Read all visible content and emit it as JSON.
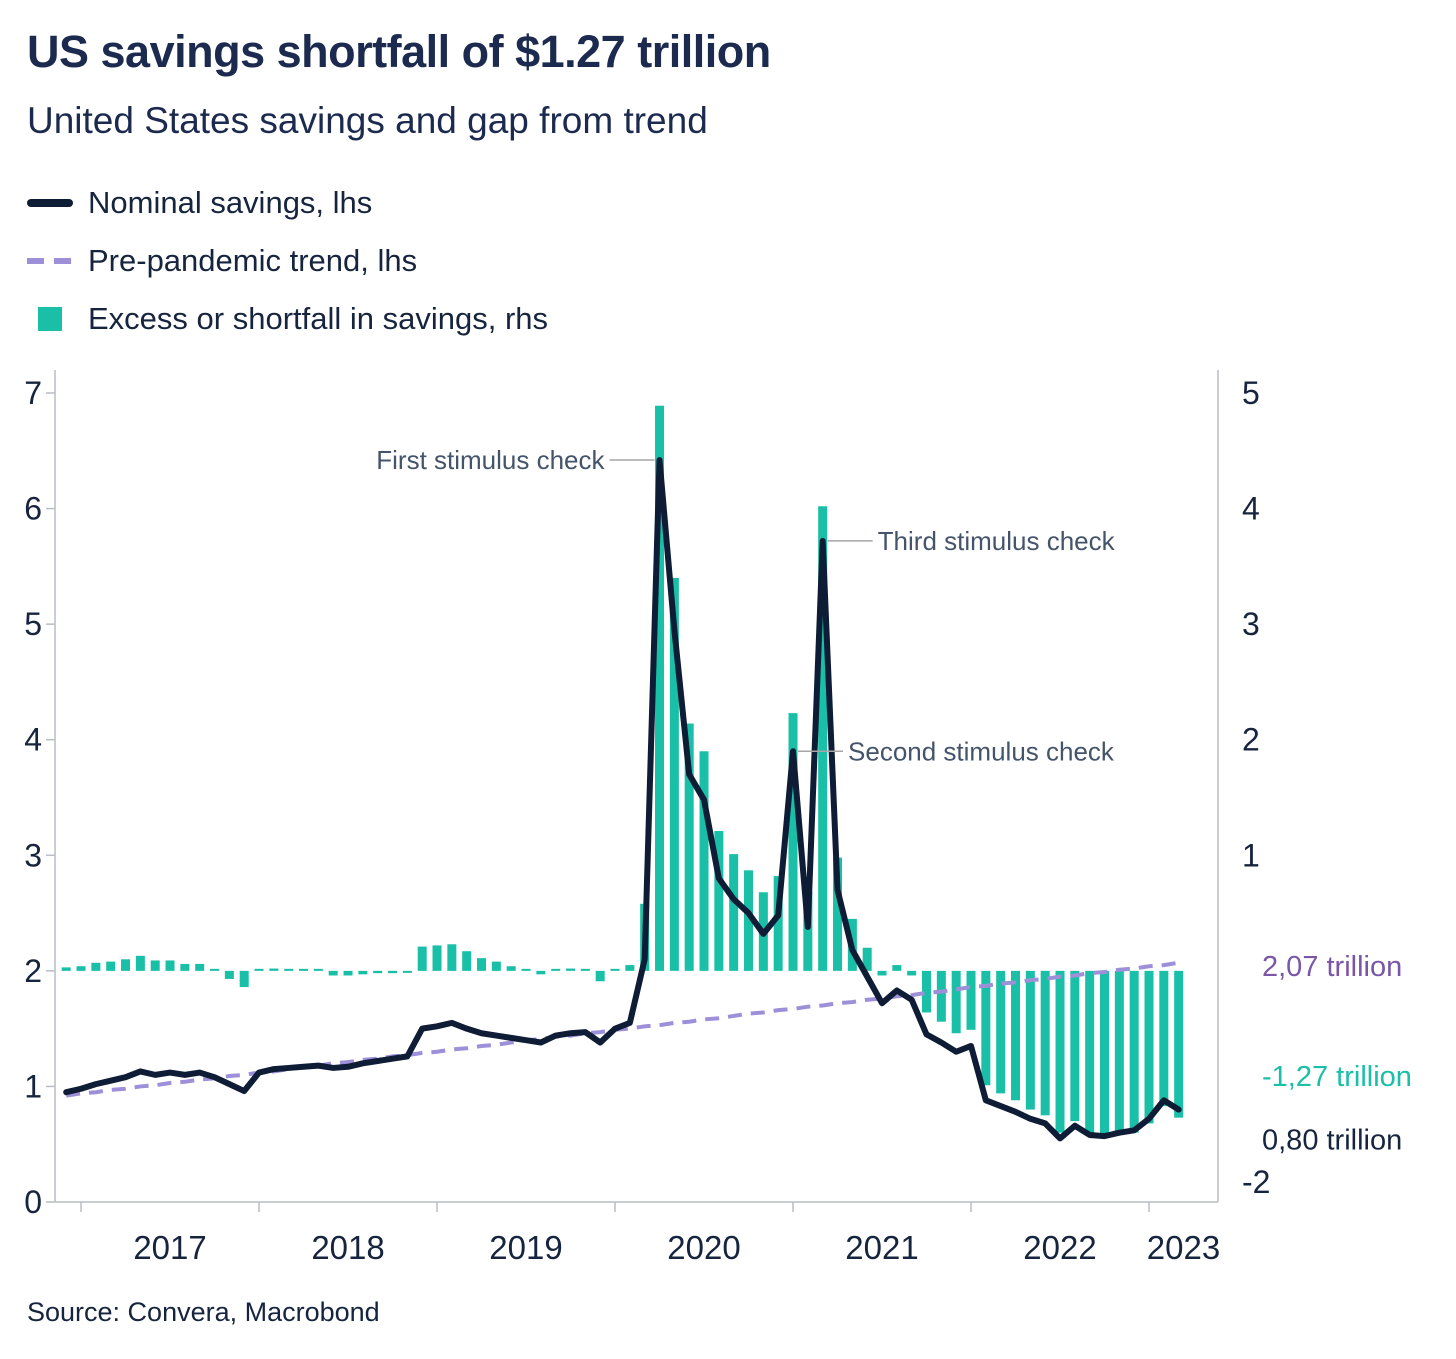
{
  "header": {
    "title": "US savings shortfall of $1.27 trillion",
    "subtitle": "United States savings and gap from trend"
  },
  "legend": [
    {
      "label": "Nominal savings, lhs",
      "swatch": "solid-line",
      "color": "#0e1c36"
    },
    {
      "label": "Pre-pandemic trend, lhs",
      "swatch": "dashed-line",
      "color": "#9e8fd9"
    },
    {
      "label": "Excess or shortfall in savings, rhs",
      "swatch": "square",
      "color": "#19bfa6"
    }
  ],
  "footer": {
    "source": "Source: Convera, Macrobond"
  },
  "colors": {
    "title": "#1b2a4e",
    "text": "#16243e",
    "line": "#0e1c36",
    "trend": "#9e8fd9",
    "trend_label": "#7a56a8",
    "excess": "#19bfa6",
    "annotation_text": "#44546a",
    "connector": "#a6a6a6",
    "axis_line": "#b9bdc4"
  },
  "left_axis": {
    "ticks": [
      7,
      6,
      5,
      4,
      3,
      2,
      1,
      0
    ],
    "range": [
      0,
      7
    ]
  },
  "right_axis": {
    "ticks": [
      5,
      4,
      3,
      2,
      1
    ],
    "bottom_tick": "-2",
    "range": [
      -2,
      5
    ]
  },
  "x_axis": {
    "year_labels": [
      "2017",
      "2018",
      "2019",
      "2020",
      "2021",
      "2022",
      "2023"
    ]
  },
  "right_value_labels": [
    {
      "text": "2,07 trillion",
      "color": "#7a56a8",
      "rhs_position": 0.05
    },
    {
      "text": "-1,27 trillion",
      "color": "#19bfa6",
      "rhs_position": -0.9
    },
    {
      "text": "0,80 trillion",
      "color": "#16243e",
      "rhs_position": -1.45
    }
  ],
  "annotations": [
    {
      "text": "First stimulus check",
      "month": "2020-04",
      "value_lhs": 6.42,
      "side": "left"
    },
    {
      "text": "Third stimulus check",
      "month": "2021-03",
      "value_lhs": 5.72,
      "side": "right"
    },
    {
      "text": "Second stimulus check",
      "month": "2021-01",
      "value_lhs": 3.9,
      "side": "right"
    }
  ],
  "chart_data": {
    "type": "combo",
    "title": "US savings shortfall of $1.27 trillion",
    "subtitle": "United States savings and gap from trend",
    "ylim_lhs": [
      0,
      7
    ],
    "ylim_rhs": [
      -2,
      5
    ],
    "months": [
      "2016-12",
      "2017-01",
      "2017-02",
      "2017-03",
      "2017-04",
      "2017-05",
      "2017-06",
      "2017-07",
      "2017-08",
      "2017-09",
      "2017-10",
      "2017-11",
      "2017-12",
      "2018-01",
      "2018-02",
      "2018-03",
      "2018-04",
      "2018-05",
      "2018-06",
      "2018-07",
      "2018-08",
      "2018-09",
      "2018-10",
      "2018-11",
      "2018-12",
      "2019-01",
      "2019-02",
      "2019-03",
      "2019-04",
      "2019-05",
      "2019-06",
      "2019-07",
      "2019-08",
      "2019-09",
      "2019-10",
      "2019-11",
      "2019-12",
      "2020-01",
      "2020-02",
      "2020-03",
      "2020-04",
      "2020-05",
      "2020-06",
      "2020-07",
      "2020-08",
      "2020-09",
      "2020-10",
      "2020-11",
      "2020-12",
      "2021-01",
      "2021-02",
      "2021-03",
      "2021-04",
      "2021-05",
      "2021-06",
      "2021-07",
      "2021-08",
      "2021-09",
      "2021-10",
      "2021-11",
      "2021-12",
      "2022-01",
      "2022-02",
      "2022-03",
      "2022-04",
      "2022-05",
      "2022-06",
      "2022-07",
      "2022-08",
      "2022-09",
      "2022-10",
      "2022-11",
      "2022-12",
      "2023-01",
      "2023-02",
      "2023-03"
    ],
    "series": [
      {
        "name": "Nominal savings, lhs",
        "type": "line",
        "axis": "lhs",
        "color": "#0e1c36",
        "values": [
          0.95,
          0.98,
          1.02,
          1.05,
          1.08,
          1.13,
          1.1,
          1.12,
          1.1,
          1.12,
          1.08,
          1.02,
          0.96,
          1.12,
          1.15,
          1.16,
          1.17,
          1.18,
          1.16,
          1.17,
          1.2,
          1.22,
          1.24,
          1.26,
          1.5,
          1.52,
          1.55,
          1.5,
          1.46,
          1.44,
          1.42,
          1.4,
          1.38,
          1.44,
          1.46,
          1.47,
          1.38,
          1.5,
          1.55,
          2.1,
          6.42,
          4.95,
          3.7,
          3.48,
          2.8,
          2.62,
          2.5,
          2.32,
          2.48,
          3.9,
          2.38,
          5.72,
          2.7,
          2.18,
          1.95,
          1.72,
          1.83,
          1.75,
          1.45,
          1.38,
          1.3,
          1.35,
          0.88,
          0.83,
          0.78,
          0.72,
          0.68,
          0.55,
          0.66,
          0.58,
          0.57,
          0.6,
          0.62,
          0.72,
          0.88,
          0.8
        ]
      },
      {
        "name": "Pre-pandemic trend, lhs",
        "type": "line-dashed",
        "axis": "lhs",
        "color": "#9e8fd9",
        "values": [
          0.92,
          0.94,
          0.95,
          0.97,
          0.98,
          1.0,
          1.01,
          1.03,
          1.04,
          1.06,
          1.07,
          1.09,
          1.1,
          1.12,
          1.13,
          1.15,
          1.17,
          1.18,
          1.2,
          1.21,
          1.23,
          1.24,
          1.26,
          1.27,
          1.29,
          1.3,
          1.32,
          1.33,
          1.35,
          1.36,
          1.38,
          1.4,
          1.41,
          1.43,
          1.44,
          1.46,
          1.47,
          1.49,
          1.5,
          1.52,
          1.53,
          1.55,
          1.56,
          1.58,
          1.59,
          1.61,
          1.63,
          1.64,
          1.66,
          1.67,
          1.69,
          1.7,
          1.72,
          1.73,
          1.75,
          1.76,
          1.78,
          1.79,
          1.81,
          1.82,
          1.84,
          1.86,
          1.87,
          1.89,
          1.9,
          1.92,
          1.93,
          1.95,
          1.96,
          1.98,
          1.99,
          2.01,
          2.02,
          2.04,
          2.05,
          2.07
        ]
      },
      {
        "name": "Excess or shortfall in savings, rhs",
        "type": "bar",
        "axis": "rhs",
        "color": "#19bfa6",
        "values": [
          0.03,
          0.04,
          0.07,
          0.08,
          0.1,
          0.13,
          0.09,
          0.09,
          0.06,
          0.06,
          0.01,
          -0.07,
          -0.14,
          0.0,
          0.02,
          0.01,
          0.0,
          0.0,
          -0.04,
          -0.04,
          -0.03,
          -0.02,
          -0.02,
          -0.01,
          0.21,
          0.22,
          0.23,
          0.17,
          0.11,
          0.08,
          0.04,
          0.0,
          -0.03,
          0.01,
          0.02,
          0.01,
          -0.09,
          0.01,
          0.05,
          0.58,
          4.89,
          3.4,
          2.14,
          1.9,
          1.21,
          1.01,
          0.87,
          0.68,
          0.82,
          2.23,
          0.69,
          4.02,
          0.98,
          0.45,
          0.2,
          -0.04,
          0.05,
          -0.04,
          -0.36,
          -0.44,
          -0.54,
          -0.51,
          -0.99,
          -1.06,
          -1.12,
          -1.2,
          -1.25,
          -1.4,
          -1.3,
          -1.4,
          -1.42,
          -1.41,
          -1.4,
          -1.32,
          -1.17,
          -1.27
        ]
      }
    ]
  }
}
